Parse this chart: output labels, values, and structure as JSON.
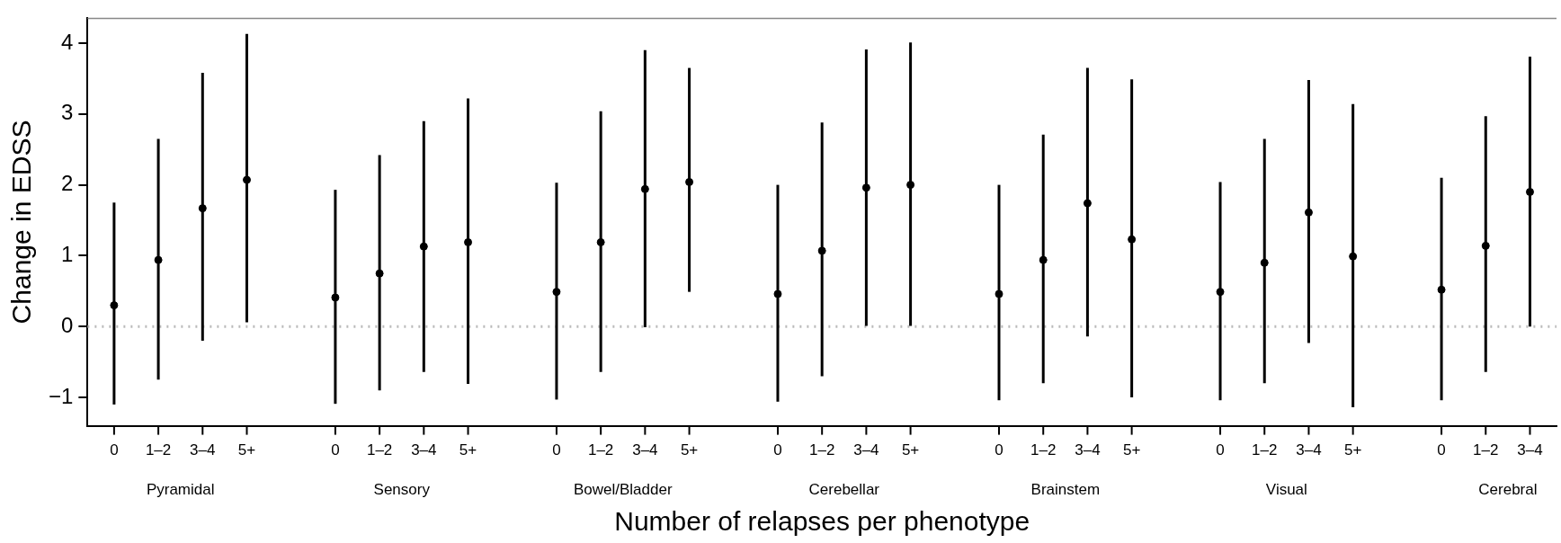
{
  "chart_data": {
    "type": "scatter",
    "xlabel": "Number of relapses per phenotype",
    "ylabel": "Change in EDSS",
    "categories": [
      "0",
      "1–2",
      "3–4",
      "5+",
      null,
      "0",
      "1–2",
      "3–4",
      "5+",
      null,
      "0",
      "1–2",
      "3–4",
      "5+",
      null,
      "0",
      "1–2",
      "3–4",
      "5+",
      null,
      "0",
      "1–2",
      "3–4",
      "5+",
      null,
      "0",
      "1–2",
      "3–4",
      "5+",
      null,
      "0",
      "1–2",
      "3–4"
    ],
    "values": [
      0.3,
      0.94,
      1.67,
      2.07,
      null,
      0.41,
      0.75,
      1.13,
      1.19,
      null,
      0.49,
      1.19,
      1.94,
      2.04,
      null,
      0.46,
      1.07,
      1.96,
      2.0,
      null,
      0.46,
      0.94,
      1.74,
      1.23,
      null,
      0.49,
      0.9,
      1.61,
      0.99,
      null,
      0.52,
      1.14,
      1.9
    ],
    "errors": [
      [
        -1.1,
        1.75
      ],
      [
        -0.75,
        2.65
      ],
      [
        -0.2,
        3.58
      ],
      [
        0.06,
        4.13
      ],
      null,
      [
        -1.09,
        1.93
      ],
      [
        -0.9,
        2.42
      ],
      [
        -0.64,
        2.9
      ],
      [
        -0.81,
        3.22
      ],
      null,
      [
        -1.03,
        2.03
      ],
      [
        -0.64,
        3.04
      ],
      [
        -0.01,
        3.9
      ],
      [
        0.49,
        3.65
      ],
      null,
      [
        -1.06,
        2.0
      ],
      [
        -0.7,
        2.88
      ],
      [
        0.01,
        3.91
      ],
      [
        0.01,
        4.01
      ],
      null,
      [
        -1.04,
        2.0
      ],
      [
        -0.8,
        2.71
      ],
      [
        -0.14,
        3.65
      ],
      [
        -1.0,
        3.49
      ],
      null,
      [
        -1.04,
        2.04
      ],
      [
        -0.8,
        2.65
      ],
      [
        -0.23,
        3.48
      ],
      [
        -1.14,
        3.14
      ],
      null,
      [
        -1.04,
        2.1
      ],
      [
        -0.64,
        2.97
      ],
      [
        0.0,
        3.81
      ]
    ],
    "color": "#000000",
    "marker": "circle",
    "grid": false,
    "ylim": [
      -1.4,
      4.35
    ],
    "yticks": [
      -1,
      0,
      1,
      2,
      3,
      4
    ],
    "ref_lines": [
      {
        "axis": "y",
        "value": 0,
        "color": "#bbbbbb",
        "line_style": "dotted"
      }
    ],
    "annotations": [
      "Pyramidal",
      "Sensory",
      "Bowel/Bladder",
      "Cerebellar",
      "Brainstem",
      "Visual",
      "Cerebral"
    ]
  }
}
